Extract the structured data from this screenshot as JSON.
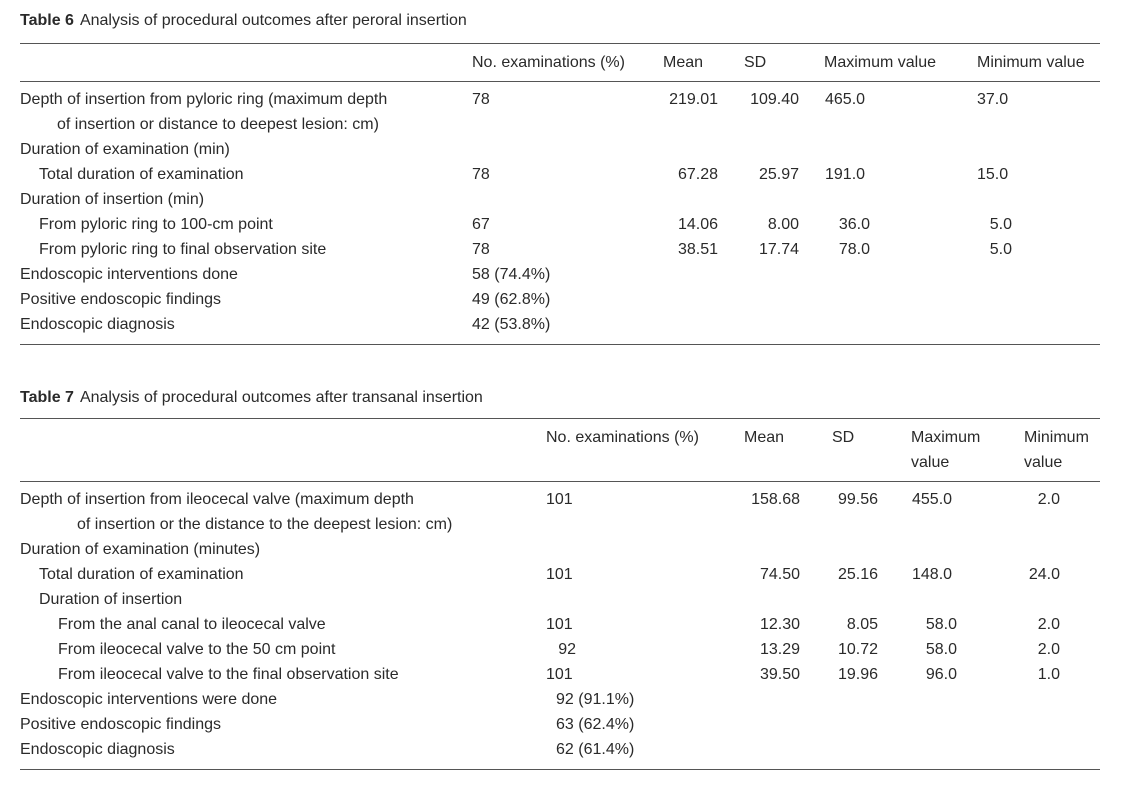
{
  "table6": {
    "label": "Table 6",
    "title": "Analysis of procedural outcomes after peroral insertion",
    "headers": [
      "No. examinations (%)",
      "Mean",
      "SD",
      "Maximum value",
      "Minimum value"
    ],
    "rows": [
      {
        "l1": "Depth of insertion from pyloric ring (maximum depth",
        "l2": "of insertion or distance to deepest lesion: cm)",
        "n": "78",
        "mean": "219.01",
        "sd": "109.40",
        "max": "465.0",
        "min": "37.0"
      },
      {
        "l1": "Duration of examination (min)"
      },
      {
        "l1": "Total duration of examination",
        "n": "78",
        "mean": "67.28",
        "sd": "25.97",
        "max": "191.0",
        "min": "15.0"
      },
      {
        "l1": "Duration of insertion (min)"
      },
      {
        "l1": "From pyloric ring to 100-cm point",
        "n": "67",
        "mean": "14.06",
        "sd": "8.00",
        "max": "36.0",
        "min": "5.0"
      },
      {
        "l1": "From pyloric ring to final observation site",
        "n": "78",
        "mean": "38.51",
        "sd": "17.74",
        "max": "78.0",
        "min": "5.0"
      },
      {
        "l1": "Endoscopic interventions done",
        "n": "58 (74.4%)"
      },
      {
        "l1": "Positive endoscopic findings",
        "n": "49 (62.8%)"
      },
      {
        "l1": "Endoscopic diagnosis",
        "n": "42 (53.8%)"
      }
    ]
  },
  "table7": {
    "label": "Table 7",
    "title": "Analysis of procedural outcomes after transanal insertion",
    "headers": [
      "No. examinations (%)",
      "Mean",
      "SD",
      "Maximum",
      "value",
      "Minimum",
      "value"
    ],
    "rows": [
      {
        "l1": "Depth of insertion from ileocecal valve (maximum depth",
        "l2": "of insertion or the distance to the deepest lesion: cm)",
        "n": "101",
        "mean": "158.68",
        "sd": "99.56",
        "max": "455.0",
        "min": "2.0"
      },
      {
        "l1": "Duration of examination (minutes)"
      },
      {
        "l1": "Total duration of examination",
        "n": "101",
        "mean": "74.50",
        "sd": "25.16",
        "max": "148.0",
        "min": "24.0"
      },
      {
        "l1": "Duration of insertion"
      },
      {
        "l1": "From the anal canal to ileocecal valve",
        "n": "101",
        "mean": "12.30",
        "sd": "8.05",
        "max": "58.0",
        "min": "2.0"
      },
      {
        "l1": "From ileocecal valve to the 50 cm point",
        "n": "92",
        "mean": "13.29",
        "sd": "10.72",
        "max": "58.0",
        "min": "2.0"
      },
      {
        "l1": "From ileocecal valve to the final observation site",
        "n": "101",
        "mean": "39.50",
        "sd": "19.96",
        "max": "96.0",
        "min": "1.0"
      },
      {
        "l1": "Endoscopic interventions were done",
        "n": "92 (91.1%)"
      },
      {
        "l1": "Positive endoscopic findings",
        "n": "63 (62.4%)"
      },
      {
        "l1": "Endoscopic diagnosis",
        "n": "62 (61.4%)"
      }
    ]
  }
}
